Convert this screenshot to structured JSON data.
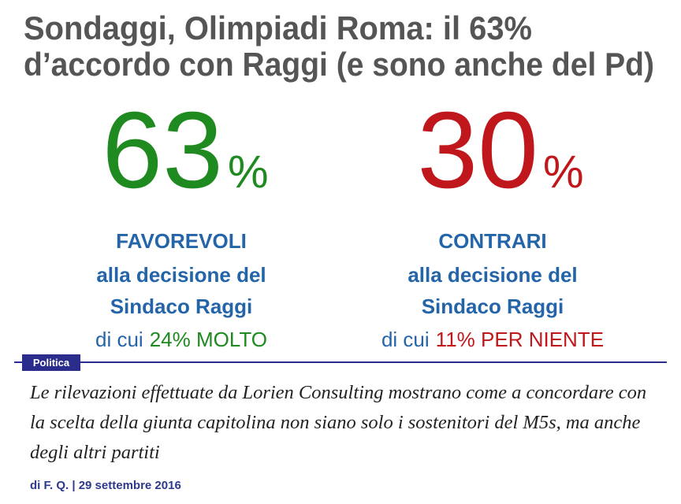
{
  "header": {
    "title_lines": [
      "Sondaggi, Olimpiadi Roma: il 63%",
      "d’accordo con Raggi (e sono anche del Pd)"
    ]
  },
  "infographic": {
    "columns": [
      {
        "number": "63",
        "unit": "%",
        "label": "FAVOREVOLI",
        "line2": "alla decisione del",
        "line3": "Sindaco Raggi",
        "detail_prefix": "di cui",
        "detail": "24% MOLTO"
      },
      {
        "number": "30",
        "unit": "%",
        "label": "CONTRARI",
        "line2": "alla decisione del",
        "line3": "Sindaco Raggi",
        "detail_prefix": "di cui",
        "detail": "11% PER NIENTE"
      }
    ]
  },
  "article": {
    "category": "Politica",
    "lead": "Le rilevazioni effettuate da Lorien Consulting mostrano come a concordare con la scelta della giunta capitolina non siano solo i sostenitori del M5s, ma anche degli altri partiti",
    "byline": "di F. Q. | 29 settembre 2016"
  }
}
